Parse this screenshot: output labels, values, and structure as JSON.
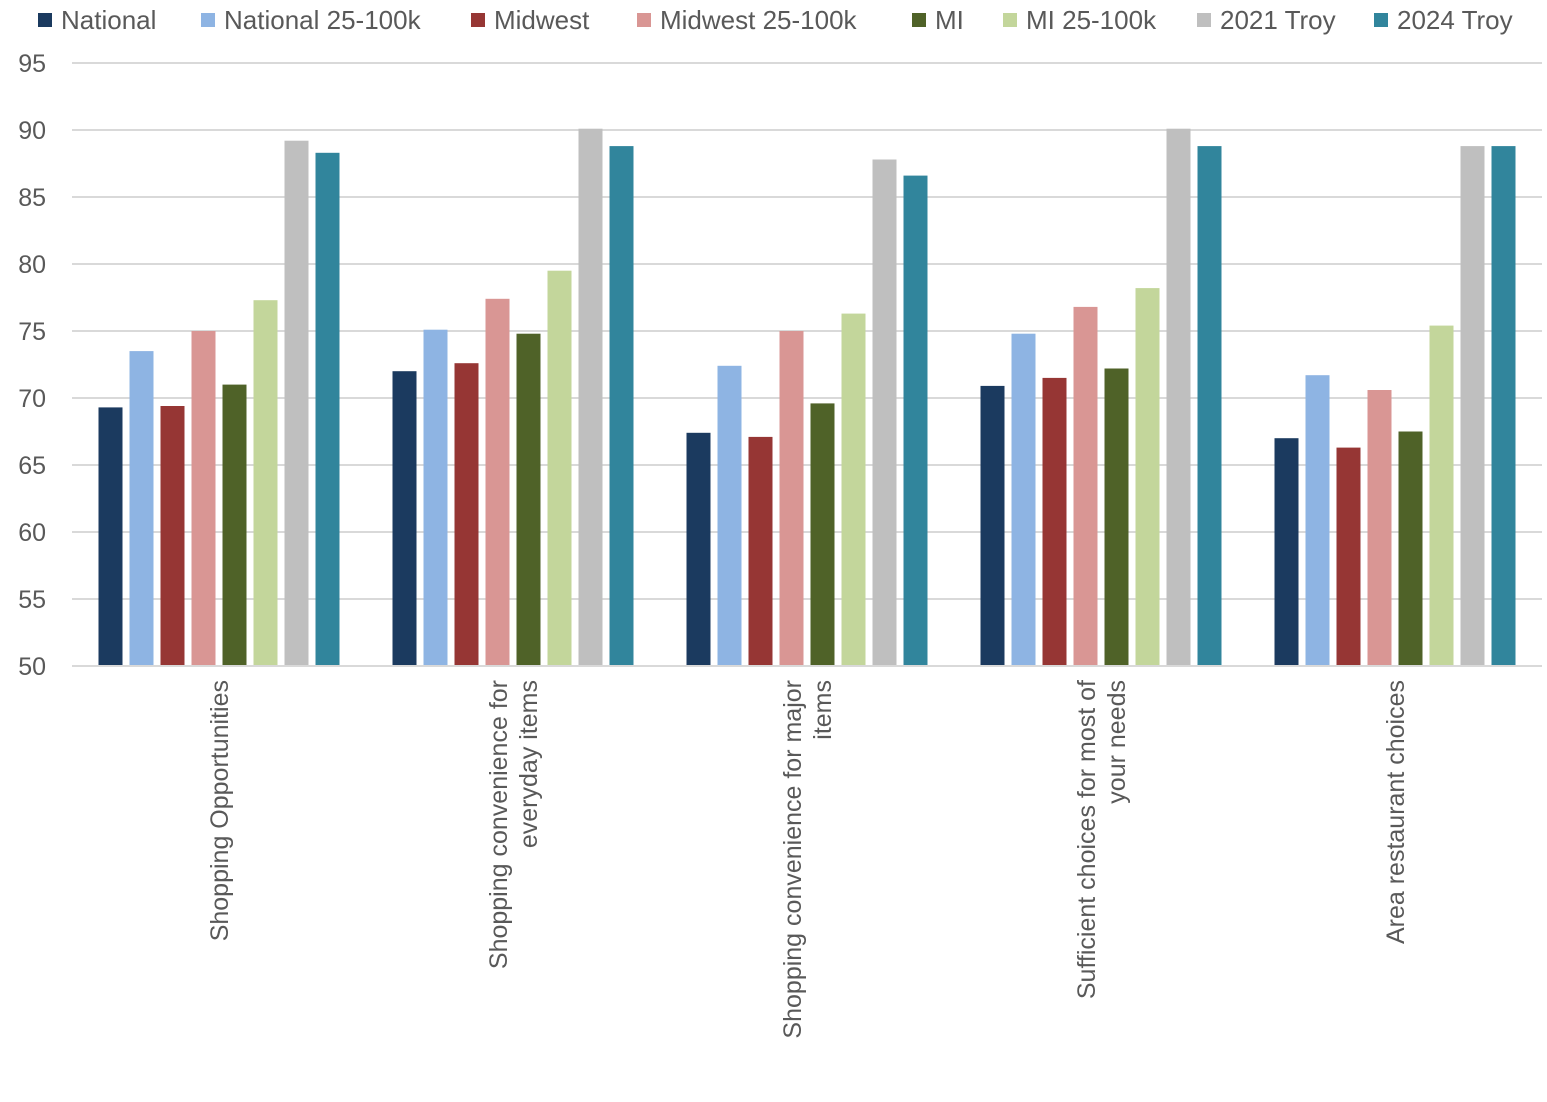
{
  "chart_data": {
    "type": "bar",
    "title": "",
    "xlabel": "",
    "ylabel": "",
    "ylim": [
      50,
      95
    ],
    "yticks": [
      50,
      55,
      60,
      65,
      70,
      75,
      80,
      85,
      90,
      95
    ],
    "grid": true,
    "legend_position": "top",
    "categories": [
      [
        "Shopping Opportunities"
      ],
      [
        "Shopping convenience for",
        "everyday items"
      ],
      [
        "Shopping convenience for major",
        "items"
      ],
      [
        "Sufficient choices for most of",
        "your needs"
      ],
      [
        "Area restaurant choices"
      ]
    ],
    "series": [
      {
        "name": "National",
        "color": "#1b3a5f",
        "values": [
          69.3,
          72.0,
          67.4,
          70.9,
          67.0
        ]
      },
      {
        "name": "National 25-100k",
        "color": "#8eb4e3",
        "values": [
          73.5,
          75.1,
          72.4,
          74.8,
          71.7
        ]
      },
      {
        "name": "Midwest",
        "color": "#963634",
        "values": [
          69.4,
          72.6,
          67.1,
          71.5,
          66.3
        ]
      },
      {
        "name": "Midwest 25-100k",
        "color": "#d99694",
        "values": [
          75.0,
          77.4,
          75.0,
          76.8,
          70.6
        ]
      },
      {
        "name": "MI",
        "color": "#4f6228",
        "values": [
          71.0,
          74.8,
          69.6,
          72.2,
          67.5
        ]
      },
      {
        "name": "MI 25-100k",
        "color": "#c3d69b",
        "values": [
          77.3,
          79.5,
          76.3,
          78.2,
          75.4
        ]
      },
      {
        "name": "2021 Troy",
        "color": "#bfbfbf",
        "values": [
          89.2,
          90.1,
          87.8,
          90.1,
          88.8
        ]
      },
      {
        "name": "2024 Troy",
        "color": "#31859c",
        "values": [
          88.3,
          88.8,
          86.6,
          88.8,
          88.8
        ]
      }
    ]
  }
}
